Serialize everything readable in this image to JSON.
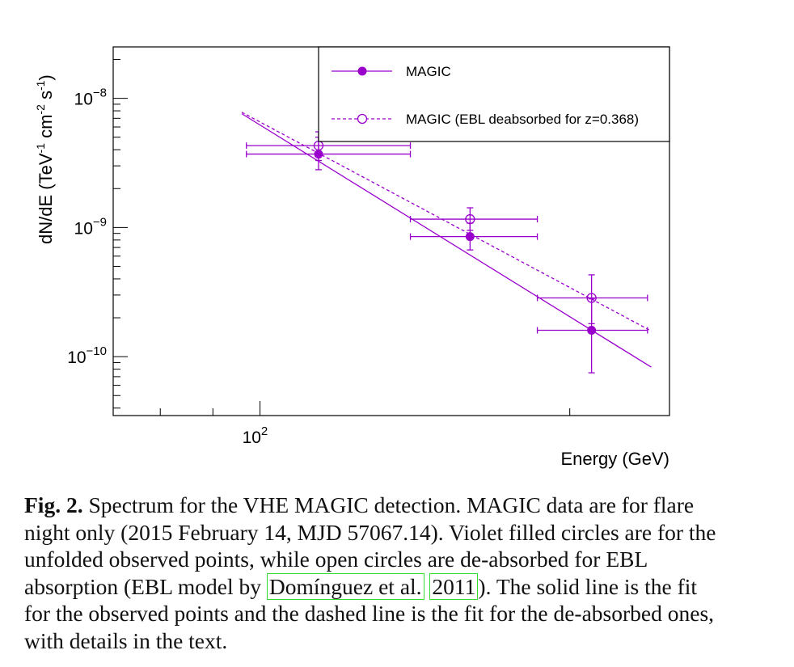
{
  "chart_data": {
    "type": "scatter",
    "xlabel": "Energy (GeV)",
    "ylabel": "dN/dE (TeV",
    "ylabel_sup1": "-1",
    "ylabel_mid": " cm",
    "ylabel_sup2": "-2",
    "ylabel_mid2": " s",
    "ylabel_sup3": "-1",
    "ylabel_end": ")",
    "x_scale": "log",
    "y_scale": "log",
    "xlim": [
      72,
      250
    ],
    "ylim": [
      3.5e-11,
      2.5e-08
    ],
    "x_ticks": [
      {
        "base": "10",
        "exp": "2",
        "value": 100
      }
    ],
    "y_ticks": [
      {
        "base": "10",
        "exp": "−10",
        "value": 1e-10
      },
      {
        "base": "10",
        "exp": "−9",
        "value": 1e-09
      },
      {
        "base": "10",
        "exp": "−8",
        "value": 1e-08
      }
    ],
    "legend_position": "top-right",
    "series": [
      {
        "name": "MAGIC",
        "marker": "filled-circle",
        "color": "#9900cc",
        "points": [
          {
            "x": 114,
            "y": 3.7e-09,
            "xerr": [
              97,
              140
            ],
            "yerr": [
              2.8e-09,
              5e-09
            ]
          },
          {
            "x": 160,
            "y": 8.5e-10,
            "xerr": [
              140,
              186
            ],
            "yerr": [
              6.7e-10,
              1.08e-09
            ]
          },
          {
            "x": 210,
            "y": 1.6e-10,
            "xerr": [
              186,
              238
            ],
            "yerr": [
              7.5e-11,
              2.8e-10
            ]
          }
        ],
        "fit": {
          "style": "solid",
          "x": [
            96,
            240
          ],
          "y": [
            7.6e-09,
            8.3e-11
          ]
        }
      },
      {
        "name": "MAGIC (EBL deabsorbed for z=0.368)",
        "marker": "open-circle",
        "color": "#9900cc",
        "points": [
          {
            "x": 114,
            "y": 4.3e-09,
            "xerr": [
              97,
              140
            ],
            "yerr": [
              3.3e-09,
              5.5e-09
            ]
          },
          {
            "x": 160,
            "y": 1.16e-09,
            "xerr": [
              140,
              186
            ],
            "yerr": [
              9.5e-10,
              1.42e-09
            ]
          },
          {
            "x": 210,
            "y": 2.85e-10,
            "xerr": [
              186,
              238
            ],
            "yerr": [
              1.8e-10,
              4.3e-10
            ]
          }
        ],
        "fit": {
          "style": "dashed",
          "x": [
            96,
            240
          ],
          "y": [
            7.8e-09,
            1.58e-10
          ]
        }
      }
    ]
  },
  "caption": {
    "label": "Fig. 2.",
    "text_before": " Spectrum for the VHE MAGIC detection. MAGIC data are for flare night only (2015 February 14, MJD 57067.14). Violet filled circles are for the unfolded observed points, while open circles are de-absorbed for EBL absorption (EBL model by ",
    "cite_author": "Domínguez et al.",
    "cite_year": "2011",
    "text_after": "). The solid line is the fit for the observed points and the dashed line is the fit for the de-absorbed ones, with details in the text."
  }
}
